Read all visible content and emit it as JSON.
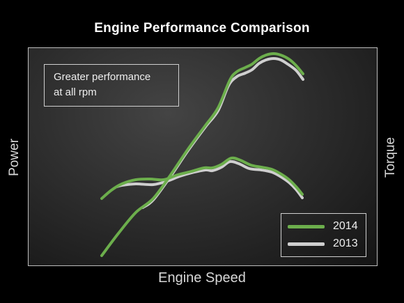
{
  "chart_data": {
    "type": "line",
    "title": "Engine Performance Comparison",
    "xlabel": "Engine Speed",
    "ylabel_left": "Power",
    "ylabel_right": "Torque",
    "grid": false,
    "axis_ticks": false,
    "annotation": [
      "Greater performance",
      "at all rpm"
    ],
    "legend_placement": "bottom-right",
    "series": [
      {
        "name": "2014",
        "color": "#6cae4c",
        "curves": {
          "power": [
            [
              146,
              367
            ],
            [
              170,
              335
            ],
            [
              195,
              305
            ],
            [
              220,
              285
            ],
            [
              245,
              251
            ],
            [
              270,
              214
            ],
            [
              295,
              180
            ],
            [
              313,
              155
            ],
            [
              330,
              115
            ],
            [
              340,
              103
            ],
            [
              352,
              97
            ],
            [
              362,
              92
            ],
            [
              372,
              84
            ],
            [
              382,
              79
            ],
            [
              393,
              77
            ],
            [
              403,
              79
            ],
            [
              415,
              85
            ],
            [
              425,
              94
            ],
            [
              435,
              106
            ]
          ],
          "torque": [
            [
              146,
              285
            ],
            [
              160,
              273
            ],
            [
              175,
              264
            ],
            [
              195,
              258
            ],
            [
              215,
              257
            ],
            [
              235,
              258
            ],
            [
              255,
              251
            ],
            [
              275,
              246
            ],
            [
              293,
              241
            ],
            [
              305,
              241
            ],
            [
              318,
              236
            ],
            [
              332,
              227
            ],
            [
              345,
              230
            ],
            [
              360,
              237
            ],
            [
              375,
              240
            ],
            [
              390,
              243
            ],
            [
              402,
              249
            ],
            [
              415,
              258
            ],
            [
              425,
              268
            ],
            [
              434,
              279
            ]
          ]
        }
      },
      {
        "name": "2013",
        "color": "#cfcfcf",
        "curves": {
          "power": [
            [
              205,
              298
            ],
            [
              220,
              287
            ],
            [
              245,
              253
            ],
            [
              270,
              216
            ],
            [
              295,
              182
            ],
            [
              313,
              159
            ],
            [
              328,
              123
            ],
            [
              340,
              110
            ],
            [
              352,
              105
            ],
            [
              362,
              100
            ],
            [
              372,
              91
            ],
            [
              382,
              86
            ],
            [
              393,
              84
            ],
            [
              403,
              86
            ],
            [
              413,
              92
            ],
            [
              425,
              101
            ],
            [
              435,
              114
            ]
          ],
          "torque": [
            [
              168,
              268
            ],
            [
              175,
              266
            ],
            [
              195,
              264
            ],
            [
              220,
              265
            ],
            [
              240,
              260
            ],
            [
              258,
              253
            ],
            [
              275,
              248
            ],
            [
              295,
              244
            ],
            [
              305,
              245
            ],
            [
              318,
              240
            ],
            [
              330,
              232
            ],
            [
              343,
              235
            ],
            [
              358,
              242
            ],
            [
              375,
              244
            ],
            [
              390,
              247
            ],
            [
              402,
              253
            ],
            [
              415,
              262
            ],
            [
              425,
              272
            ],
            [
              434,
              284
            ]
          ]
        }
      }
    ]
  }
}
